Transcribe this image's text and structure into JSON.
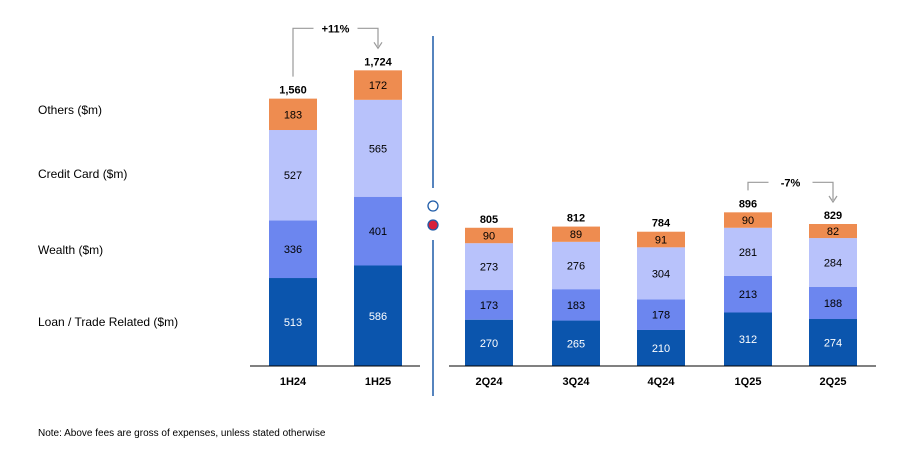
{
  "colors": {
    "loan": "#0b55ad",
    "wealth": "#6c86ef",
    "card": "#b8c2fb",
    "others": "#ee8c50",
    "divider": "#1f5ca8",
    "arrow": "#9a9a9a"
  },
  "legend": {
    "others": "Others ($m)",
    "card": "Credit Card ($m)",
    "wealth": "Wealth ($m)",
    "loan": "Loan / Trade Related ($m)"
  },
  "footnote": "Note: Above fees are gross of expenses, unless stated otherwise",
  "chart_data": [
    {
      "type": "bar",
      "stacked": true,
      "categories": [
        "1H24",
        "1H25"
      ],
      "series": [
        {
          "name": "Loan / Trade Related ($m)",
          "key": "loan",
          "values": [
            513,
            586
          ]
        },
        {
          "name": "Wealth ($m)",
          "key": "wealth",
          "values": [
            336,
            401
          ]
        },
        {
          "name": "Credit Card ($m)",
          "key": "card",
          "values": [
            527,
            565
          ]
        },
        {
          "name": "Others ($m)",
          "key": "others",
          "values": [
            183,
            172
          ]
        }
      ],
      "totals": [
        "1,560",
        "1,724"
      ],
      "annotation": {
        "text": "+11%",
        "from": "1H24",
        "to": "1H25"
      }
    },
    {
      "type": "bar",
      "stacked": true,
      "categories": [
        "2Q24",
        "3Q24",
        "4Q24",
        "1Q25",
        "2Q25"
      ],
      "series": [
        {
          "name": "Loan / Trade Related ($m)",
          "key": "loan",
          "values": [
            270,
            265,
            210,
            312,
            274
          ]
        },
        {
          "name": "Wealth ($m)",
          "key": "wealth",
          "values": [
            173,
            183,
            178,
            213,
            188
          ]
        },
        {
          "name": "Credit Card ($m)",
          "key": "card",
          "values": [
            273,
            276,
            304,
            281,
            284
          ]
        },
        {
          "name": "Others ($m)",
          "key": "others",
          "values": [
            90,
            89,
            91,
            90,
            82
          ]
        }
      ],
      "totals": [
        "805",
        "812",
        "784",
        "896",
        "829"
      ],
      "annotation": {
        "text": "-7%",
        "from": "1Q25",
        "to": "2Q25"
      }
    }
  ]
}
